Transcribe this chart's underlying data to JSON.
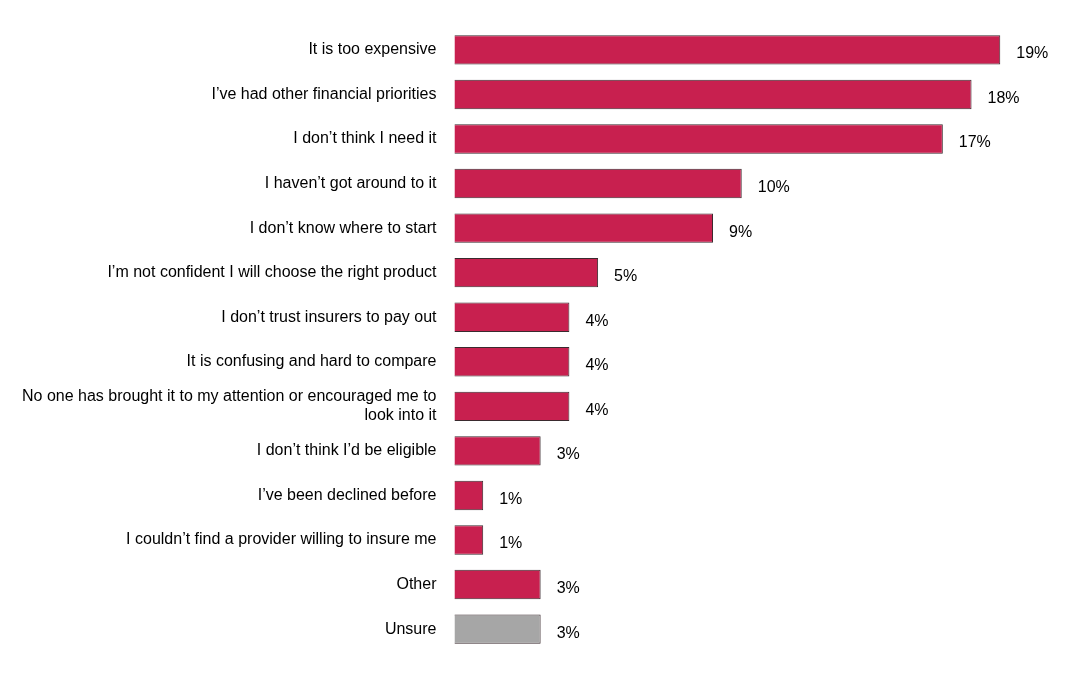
{
  "chart_data": {
    "type": "bar",
    "orientation": "horizontal",
    "categories": [
      "It is too expensive",
      "I’ve had other financial priorities",
      "I don’t think I need it",
      "I haven’t got around to it",
      "I don’t know where to start",
      "I’m not confident I will choose the right product",
      "I don’t trust insurers to pay out",
      "It is confusing and hard to compare",
      "No one has brought it to my attention or encouraged me to look into it",
      "I don’t think I’d be eligible",
      "I’ve been declined before",
      "I couldn’t find a provider willing to insure me",
      "Other",
      "Unsure"
    ],
    "values": [
      19,
      18,
      17,
      10,
      9,
      5,
      4,
      4,
      4,
      3,
      1,
      1,
      3,
      3
    ],
    "value_labels": [
      "19%",
      "18%",
      "17%",
      "10%",
      "9%",
      "5%",
      "4%",
      "4%",
      "4%",
      "3%",
      "1%",
      "1%",
      "3%",
      "3%"
    ],
    "colors": [
      "#c8204f",
      "#c8204f",
      "#c8204f",
      "#c8204f",
      "#c8204f",
      "#c8204f",
      "#c8204f",
      "#c8204f",
      "#c8204f",
      "#c8204f",
      "#c8204f",
      "#c8204f",
      "#c8204f",
      "#a6a6a6"
    ],
    "tick_labels": "y"
  }
}
